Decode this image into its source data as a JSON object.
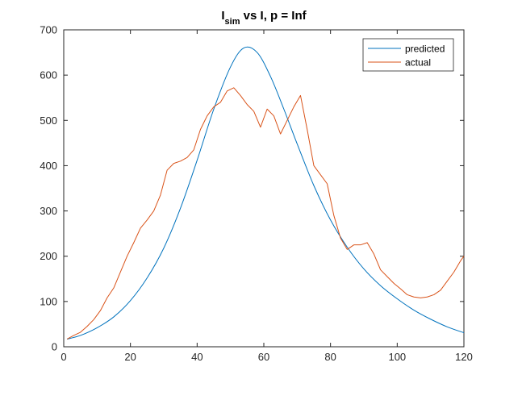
{
  "chart_data": {
    "type": "line",
    "title": {
      "main": "I",
      "sub": "sim",
      "rest": " vs I, p = Inf"
    },
    "xlabel": "",
    "ylabel": "",
    "xlim": [
      0,
      120
    ],
    "ylim": [
      0,
      700
    ],
    "xticks": [
      0,
      20,
      40,
      60,
      80,
      100,
      120
    ],
    "yticks": [
      0,
      100,
      200,
      300,
      400,
      500,
      600,
      700
    ],
    "box": true,
    "grid": false,
    "legend_position": "top-right",
    "series": [
      {
        "name": "predicted",
        "color": "#0072BD",
        "x": [
          1,
          5,
          10,
          15,
          20,
          25,
          30,
          35,
          40,
          45,
          50,
          54,
          58,
          62,
          66,
          70,
          75,
          80,
          85,
          90,
          95,
          100,
          105,
          110,
          115,
          120
        ],
        "y": [
          17,
          25,
          42,
          66,
          102,
          152,
          218,
          306,
          412,
          525,
          618,
          660,
          650,
          597,
          525,
          448,
          356,
          280,
          220,
          172,
          135,
          106,
          81,
          61,
          44,
          31
        ]
      },
      {
        "name": "actual",
        "color": "#D95319",
        "x": [
          1,
          3,
          5,
          7,
          9,
          11,
          13,
          15,
          17,
          19,
          21,
          23,
          25,
          27,
          29,
          31,
          33,
          35,
          37,
          39,
          41,
          43,
          45,
          47,
          49,
          51,
          53,
          55,
          57,
          59,
          61,
          63,
          65,
          67,
          69,
          71,
          73,
          75,
          77,
          79,
          81,
          83,
          85,
          87,
          89,
          91,
          93,
          95,
          97,
          99,
          101,
          103,
          105,
          107,
          109,
          111,
          113,
          115,
          117,
          119,
          120
        ],
        "y": [
          17,
          25,
          32,
          45,
          60,
          80,
          108,
          130,
          165,
          200,
          230,
          262,
          280,
          300,
          335,
          390,
          405,
          410,
          418,
          435,
          480,
          510,
          530,
          540,
          565,
          572,
          555,
          535,
          520,
          485,
          525,
          510,
          470,
          500,
          530,
          555,
          480,
          400,
          380,
          360,
          290,
          240,
          215,
          225,
          225,
          230,
          205,
          170,
          155,
          140,
          128,
          115,
          110,
          108,
          110,
          115,
          125,
          145,
          165,
          190,
          200
        ]
      }
    ]
  }
}
